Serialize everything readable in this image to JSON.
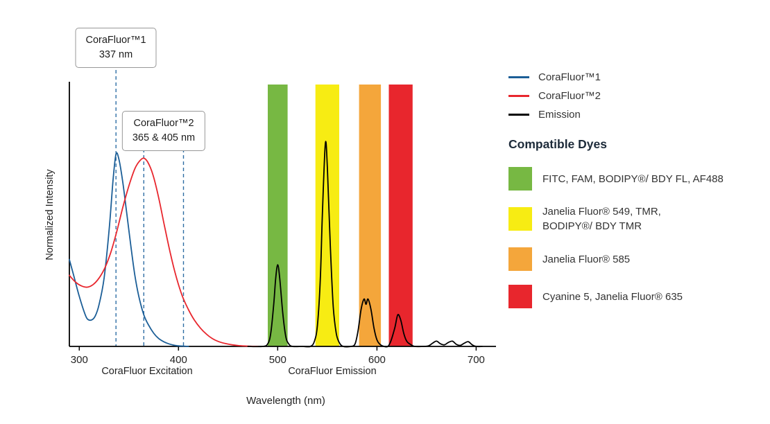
{
  "chart_data": {
    "type": "line",
    "title": "",
    "xlabel": "Wavelength (nm)",
    "ylabel": "Normalized Intensity",
    "xlim": [
      290,
      720
    ],
    "ylim": [
      0,
      1
    ],
    "grid": false,
    "x_ticks": [
      300,
      400,
      500,
      600,
      700
    ],
    "x_section_labels": [
      {
        "label": "CoraFluor Excitation",
        "center_nm": 368
      },
      {
        "label": "CoraFluor Emission",
        "center_nm": 555
      }
    ],
    "callouts": [
      {
        "title": "CoraFluor™1",
        "value": "337 nm",
        "lines_nm": [
          337
        ]
      },
      {
        "title": "CoraFluor™2",
        "value": "365 & 405 nm",
        "lines_nm": [
          365,
          405
        ]
      }
    ],
    "guide_line_color": "#2E6DA4",
    "bands": [
      {
        "name": "green",
        "color": "#77B843",
        "range": [
          490,
          510
        ]
      },
      {
        "name": "yellow",
        "color": "#F7EC13",
        "range": [
          538,
          562
        ]
      },
      {
        "name": "orange",
        "color": "#F4A63B",
        "range": [
          582,
          604
        ]
      },
      {
        "name": "red",
        "color": "#E8262D",
        "range": [
          612,
          636
        ]
      }
    ],
    "series": [
      {
        "name": "CoraFluor™1",
        "color": "#1B5E97",
        "points": [
          [
            290,
            0.33
          ],
          [
            295,
            0.26
          ],
          [
            300,
            0.19
          ],
          [
            305,
            0.13
          ],
          [
            308,
            0.105
          ],
          [
            312,
            0.1
          ],
          [
            316,
            0.115
          ],
          [
            320,
            0.16
          ],
          [
            325,
            0.26
          ],
          [
            330,
            0.44
          ],
          [
            334,
            0.63
          ],
          [
            337,
            0.73
          ],
          [
            340,
            0.71
          ],
          [
            344,
            0.62
          ],
          [
            348,
            0.5
          ],
          [
            352,
            0.38
          ],
          [
            356,
            0.27
          ],
          [
            360,
            0.19
          ],
          [
            365,
            0.12
          ],
          [
            370,
            0.08
          ],
          [
            375,
            0.05
          ],
          [
            380,
            0.03
          ],
          [
            385,
            0.018
          ],
          [
            390,
            0.01
          ],
          [
            395,
            0.005
          ],
          [
            400,
            0.002
          ],
          [
            405,
            0.001
          ],
          [
            410,
            0
          ]
        ]
      },
      {
        "name": "CoraFluor™2",
        "color": "#E8262D",
        "points": [
          [
            290,
            0.27
          ],
          [
            296,
            0.245
          ],
          [
            302,
            0.23
          ],
          [
            308,
            0.225
          ],
          [
            314,
            0.235
          ],
          [
            320,
            0.26
          ],
          [
            326,
            0.3
          ],
          [
            332,
            0.36
          ],
          [
            338,
            0.44
          ],
          [
            344,
            0.53
          ],
          [
            350,
            0.61
          ],
          [
            356,
            0.675
          ],
          [
            361,
            0.705
          ],
          [
            365,
            0.715
          ],
          [
            369,
            0.7
          ],
          [
            374,
            0.655
          ],
          [
            380,
            0.565
          ],
          [
            386,
            0.455
          ],
          [
            392,
            0.35
          ],
          [
            398,
            0.26
          ],
          [
            404,
            0.19
          ],
          [
            410,
            0.14
          ],
          [
            416,
            0.1
          ],
          [
            422,
            0.07
          ],
          [
            428,
            0.047
          ],
          [
            434,
            0.03
          ],
          [
            440,
            0.019
          ],
          [
            447,
            0.011
          ],
          [
            454,
            0.006
          ],
          [
            461,
            0.003
          ],
          [
            470,
            0.001
          ],
          [
            480,
            0
          ]
        ]
      },
      {
        "name": "Emission",
        "color": "#000000",
        "points": [
          [
            470,
            0
          ],
          [
            485,
            0
          ],
          [
            490,
            0.01
          ],
          [
            493,
            0.05
          ],
          [
            496,
            0.16
          ],
          [
            498,
            0.26
          ],
          [
            500,
            0.31
          ],
          [
            502,
            0.26
          ],
          [
            505,
            0.13
          ],
          [
            508,
            0.04
          ],
          [
            511,
            0.01
          ],
          [
            515,
            0
          ],
          [
            525,
            0
          ],
          [
            533,
            0
          ],
          [
            537,
            0.02
          ],
          [
            540,
            0.08
          ],
          [
            543,
            0.26
          ],
          [
            545,
            0.5
          ],
          [
            548,
            0.77
          ],
          [
            550,
            0.68
          ],
          [
            553,
            0.38
          ],
          [
            556,
            0.15
          ],
          [
            559,
            0.05
          ],
          [
            562,
            0.015
          ],
          [
            566,
            0
          ],
          [
            574,
            0
          ],
          [
            578,
            0.01
          ],
          [
            581,
            0.06
          ],
          [
            584,
            0.14
          ],
          [
            587,
            0.18
          ],
          [
            589,
            0.16
          ],
          [
            591,
            0.18
          ],
          [
            594,
            0.14
          ],
          [
            597,
            0.07
          ],
          [
            600,
            0.025
          ],
          [
            603,
            0.008
          ],
          [
            607,
            0
          ],
          [
            611,
            0
          ],
          [
            614,
            0.02
          ],
          [
            618,
            0.07
          ],
          [
            621,
            0.12
          ],
          [
            624,
            0.1
          ],
          [
            627,
            0.05
          ],
          [
            630,
            0.02
          ],
          [
            634,
            0.007
          ],
          [
            638,
            0
          ],
          [
            646,
            0
          ],
          [
            652,
            0.002
          ],
          [
            656,
            0.012
          ],
          [
            660,
            0.02
          ],
          [
            664,
            0.01
          ],
          [
            668,
            0.006
          ],
          [
            672,
            0.015
          ],
          [
            676,
            0.02
          ],
          [
            680,
            0.008
          ],
          [
            684,
            0.004
          ],
          [
            688,
            0.012
          ],
          [
            692,
            0.018
          ],
          [
            696,
            0.006
          ],
          [
            700,
            0
          ],
          [
            706,
            0
          ]
        ]
      }
    ]
  },
  "legend": {
    "lines": [
      {
        "label": "CoraFluor™1",
        "color": "#1B5E97"
      },
      {
        "label": "CoraFluor™2",
        "color": "#E8262D"
      },
      {
        "label": "Emission",
        "color": "#000000"
      }
    ],
    "dyes_heading": "Compatible Dyes",
    "dyes": [
      {
        "name": "green",
        "label": "FITC, FAM, BODIPY®/ BDY FL, AF488",
        "color": "#77B843"
      },
      {
        "name": "yellow",
        "label": "Janelia Fluor® 549, TMR,\nBODIPY®/ BDY TMR",
        "color": "#F7EC13"
      },
      {
        "name": "orange",
        "label": "Janelia Fluor® 585",
        "color": "#F4A63B"
      },
      {
        "name": "red",
        "label": "Cyanine 5, Janelia Fluor® 635",
        "color": "#E8262D"
      }
    ]
  }
}
